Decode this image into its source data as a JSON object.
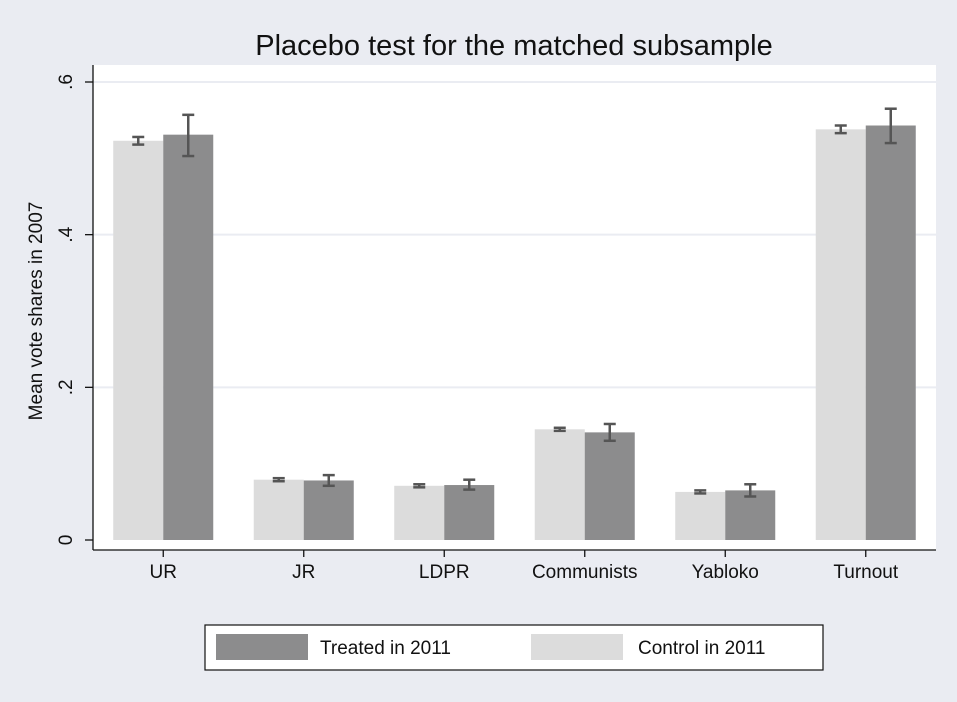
{
  "chart_data": {
    "type": "bar",
    "title": "Placebo test for the matched subsample",
    "xlabel": "",
    "ylabel": "Mean vote shares in 2007",
    "ylim": [
      0,
      0.6
    ],
    "yticks": [
      {
        "value": 0,
        "label": "0"
      },
      {
        "value": 0.2,
        "label": ".2"
      },
      {
        "value": 0.4,
        "label": ".4"
      },
      {
        "value": 0.6,
        "label": ".6"
      }
    ],
    "grid": true,
    "legend_position": "bottom",
    "categories": [
      "UR",
      "JR",
      "LDPR",
      "Communists",
      "Yabloko",
      "Turnout"
    ],
    "series": [
      {
        "name": "Control in 2011",
        "color": "#dcdcdc",
        "values": [
          0.523,
          0.079,
          0.071,
          0.145,
          0.063,
          0.538
        ],
        "ci_low": [
          0.518,
          0.077,
          0.069,
          0.143,
          0.061,
          0.533
        ],
        "ci_high": [
          0.528,
          0.081,
          0.073,
          0.147,
          0.065,
          0.543
        ]
      },
      {
        "name": "Treated in 2011",
        "color": "#8c8c8d",
        "values": [
          0.531,
          0.078,
          0.072,
          0.141,
          0.065,
          0.543
        ],
        "ci_low": [
          0.503,
          0.071,
          0.066,
          0.13,
          0.057,
          0.52
        ],
        "ci_high": [
          0.557,
          0.085,
          0.079,
          0.152,
          0.073,
          0.565
        ]
      }
    ],
    "legend_order": [
      "Treated in 2011",
      "Control in 2011"
    ]
  }
}
